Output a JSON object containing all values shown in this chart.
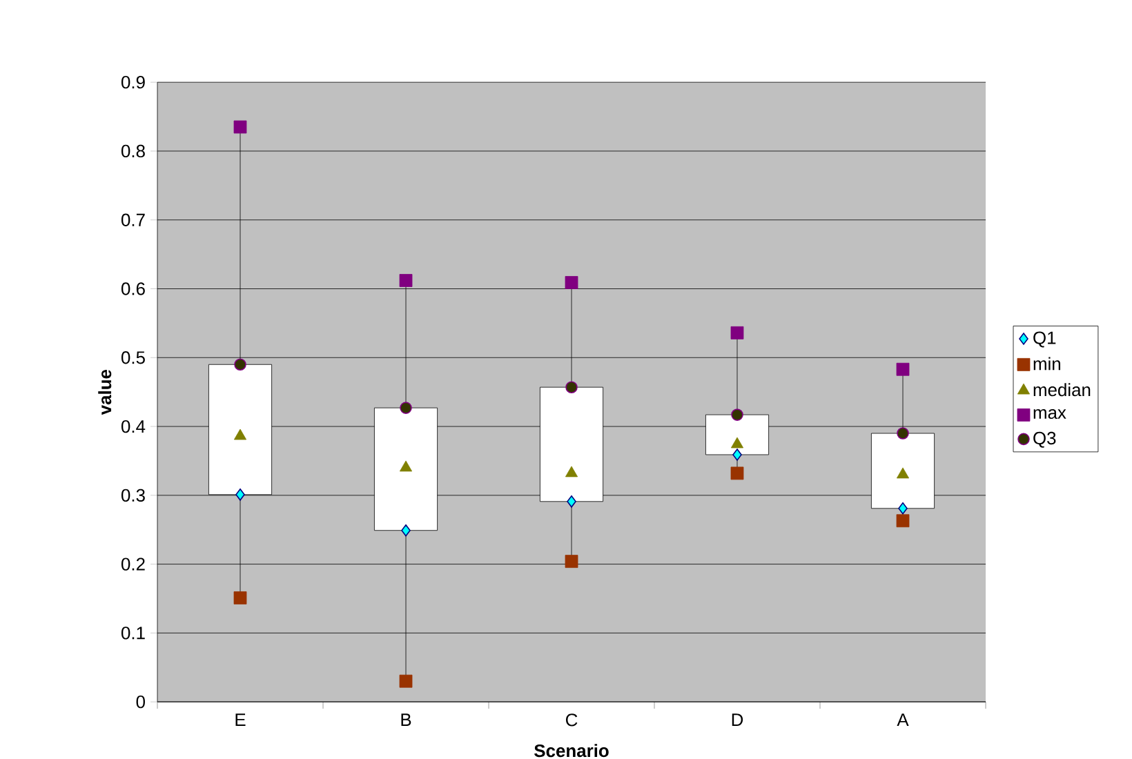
{
  "chart_data": {
    "type": "box",
    "xlabel": "Scenario",
    "ylabel": "value",
    "categories": [
      "E",
      "B",
      "C",
      "D",
      "A"
    ],
    "boxes": [
      {
        "low": 0.151,
        "q1": 0.301,
        "q3": 0.49,
        "high": 0.835
      },
      {
        "low": 0.03,
        "q1": 0.249,
        "q3": 0.427,
        "high": 0.612
      },
      {
        "low": 0.204,
        "q1": 0.291,
        "q3": 0.457,
        "high": 0.609
      },
      {
        "low": 0.332,
        "q1": 0.359,
        "q3": 0.417,
        "high": 0.536
      },
      {
        "low": 0.263,
        "q1": 0.281,
        "q3": 0.39,
        "high": 0.483
      }
    ],
    "series": [
      {
        "name": "Q1",
        "type": "scatter",
        "marker": "diamond",
        "color": "#00ffff",
        "x": [
          "E",
          "B",
          "C",
          "D",
          "A"
        ],
        "values": [
          0.301,
          0.249,
          0.291,
          0.359,
          0.281
        ]
      },
      {
        "name": "min",
        "type": "scatter",
        "marker": "square",
        "color": "#993300",
        "x": [
          "E",
          "B",
          "C",
          "D",
          "A"
        ],
        "values": [
          0.151,
          0.03,
          0.204,
          0.332,
          0.263
        ]
      },
      {
        "name": "median",
        "type": "scatter",
        "marker": "triangle",
        "color": "#808000",
        "x": [
          "E",
          "B",
          "C",
          "D",
          "A"
        ],
        "values": [
          0.386,
          0.34,
          0.332,
          0.374,
          0.33
        ]
      },
      {
        "name": "max",
        "type": "scatter",
        "marker": "square",
        "color": "#800080",
        "x": [
          "E",
          "B",
          "C",
          "D",
          "A"
        ],
        "values": [
          0.835,
          0.612,
          0.609,
          0.536,
          0.483
        ]
      },
      {
        "name": "Q3",
        "type": "scatter",
        "marker": "circle",
        "color": "#333300",
        "x": [
          "E",
          "B",
          "C",
          "D",
          "A"
        ],
        "values": [
          0.49,
          0.427,
          0.457,
          0.417,
          0.39
        ]
      }
    ],
    "ylim": [
      0,
      0.9
    ],
    "yticks": [
      0,
      0.1,
      0.2,
      0.3,
      0.4,
      0.5,
      0.6,
      0.7,
      0.8,
      0.9
    ],
    "grid": "y",
    "legend": "right"
  }
}
